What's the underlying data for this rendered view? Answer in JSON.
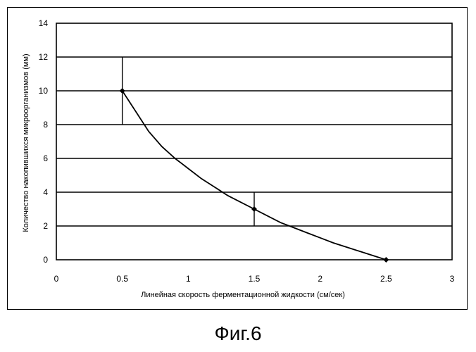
{
  "caption": "Фиг.6",
  "chart_data": {
    "type": "line",
    "xlabel": "Линейная скорость ферментационной жидкости (см/сек)",
    "ylabel": "Количество накопившихся микроорганизмов (мм)",
    "xlim": [
      0,
      3
    ],
    "ylim": [
      0,
      14
    ],
    "x_ticks": [
      "0",
      "0.5",
      "1",
      "1.5",
      "2",
      "2.5",
      "3"
    ],
    "y_ticks": [
      "0",
      "2",
      "4",
      "6",
      "8",
      "10",
      "12",
      "14"
    ],
    "grid": "horizontal",
    "series": [
      {
        "points": [
          {
            "x": 0.5,
            "y": 10,
            "err_low": 8,
            "err_high": 12
          },
          {
            "x": 1.5,
            "y": 3,
            "err_low": 2,
            "err_high": 4
          },
          {
            "x": 2.5,
            "y": 0
          }
        ],
        "fitted_curve": [
          [
            0.5,
            10
          ],
          [
            0.6,
            8.8
          ],
          [
            0.7,
            7.6
          ],
          [
            0.8,
            6.7
          ],
          [
            0.9,
            6.0
          ],
          [
            1.0,
            5.4
          ],
          [
            1.1,
            4.8
          ],
          [
            1.2,
            4.3
          ],
          [
            1.3,
            3.8
          ],
          [
            1.4,
            3.4
          ],
          [
            1.5,
            3.0
          ],
          [
            1.6,
            2.6
          ],
          [
            1.7,
            2.2
          ],
          [
            1.8,
            1.9
          ],
          [
            1.9,
            1.6
          ],
          [
            2.0,
            1.3
          ],
          [
            2.1,
            1.0
          ],
          [
            2.2,
            0.75
          ],
          [
            2.3,
            0.5
          ],
          [
            2.4,
            0.25
          ],
          [
            2.5,
            0
          ]
        ]
      }
    ]
  }
}
